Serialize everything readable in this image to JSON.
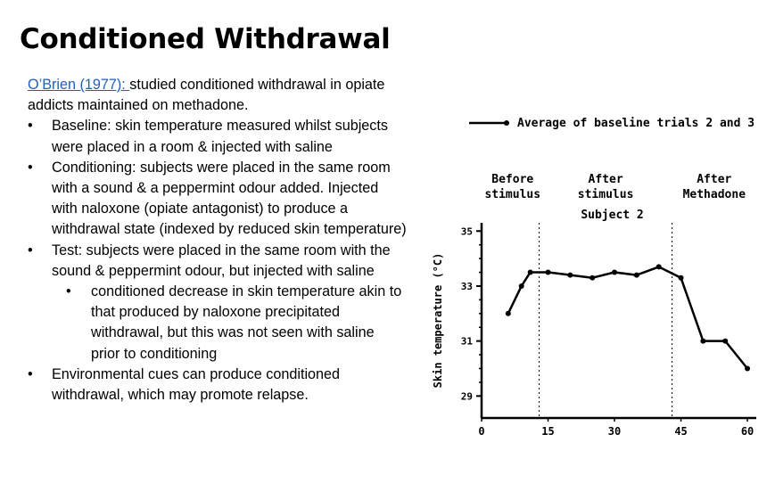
{
  "slide": {
    "title": "Conditioned Withdrawal",
    "intro_citation": "O’Brien (1977): ",
    "intro_text": "studied conditioned withdrawal in opiate addicts maintained on methadone.",
    "bullets": [
      "Baseline: skin temperature measured whilst subjects were placed in a room & injected with saline",
      "Conditioning: subjects were placed in the same room with a sound & a peppermint odour added. Injected with naloxone (opiate antagonist) to produce a withdrawal state (indexed by reduced skin temperature)",
      "Test: subjects were placed in the same room with the sound & peppermint odour, but injected with saline"
    ],
    "sub_bullet": "conditioned decrease in skin temperature akin to that produced by naloxone precipitated withdrawal, but this was not seen with saline prior to conditioning",
    "last_bullet": "Environmental cues can produce conditioned withdrawal, which may promote relapse."
  },
  "chart_data": {
    "type": "line",
    "title": "Subject 2",
    "ylabel": "Skin temperature (°C)",
    "xlabel": "",
    "xlim": [
      0,
      62
    ],
    "ylim": [
      28.2,
      35.3
    ],
    "xticks": [
      0,
      15,
      30,
      45,
      60
    ],
    "yticks": [
      29,
      31,
      33,
      35
    ],
    "phase_labels": [
      {
        "line1": "Before",
        "line2": "stimulus",
        "x": 7
      },
      {
        "line1": "After",
        "line2": "stimulus",
        "x": 28
      },
      {
        "line1": "After",
        "line2": "Methadone",
        "x": 52.5
      }
    ],
    "dividers": [
      13,
      43
    ],
    "legend_position": "top",
    "series": [
      {
        "name": "Average of baseline trials 2 and 3",
        "style": "solid-filled",
        "x": [
          6,
          9,
          11,
          15,
          20,
          25,
          30,
          35,
          40,
          45,
          50,
          55,
          60
        ],
        "y": [
          32.0,
          33.0,
          33.5,
          33.5,
          33.4,
          33.3,
          33.5,
          33.4,
          33.7,
          33.3,
          31.0,
          31.0,
          30.0
        ]
      }
    ]
  }
}
